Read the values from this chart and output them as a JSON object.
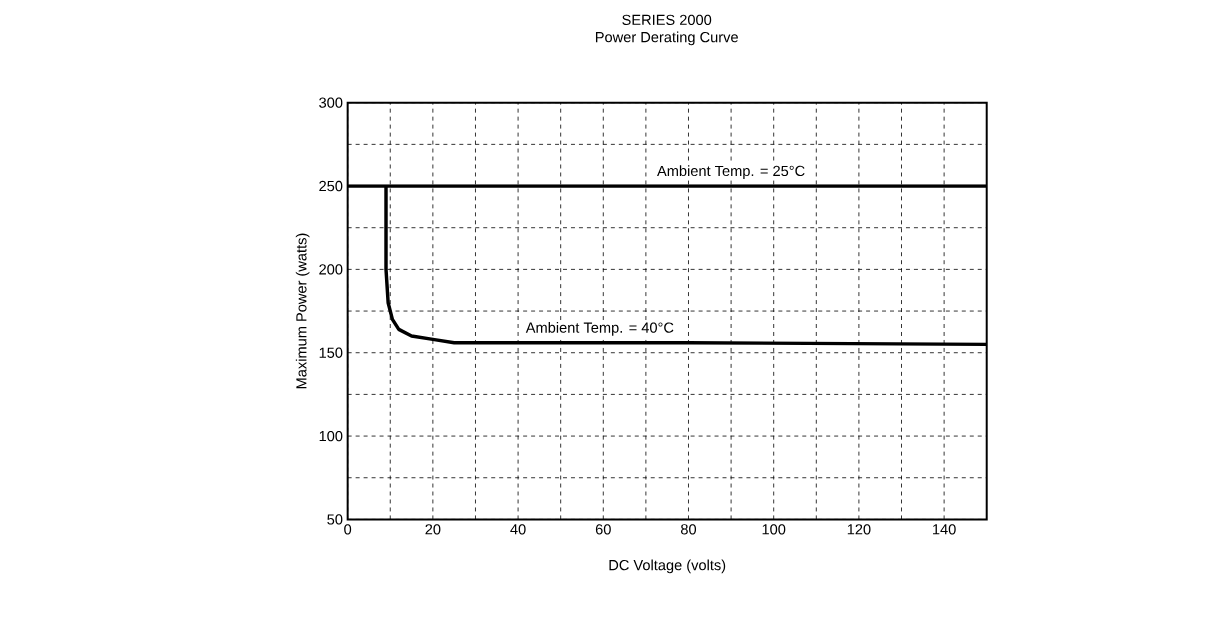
{
  "chart_data": {
    "type": "line",
    "title": "SERIES 2000",
    "subtitle": "Power Derating Curve",
    "xlabel": "DC Voltage (volts)",
    "ylabel": "Maximum Power (watts)",
    "xlim": [
      0,
      150
    ],
    "xticks": [
      0,
      20,
      40,
      60,
      80,
      100,
      120,
      140
    ],
    "ylim": [
      50,
      300
    ],
    "yticks": [
      50,
      100,
      150,
      200,
      250,
      300
    ],
    "grid": true,
    "line_style": "solid",
    "marker": "none",
    "series": [
      {
        "name": "Ambient Temp. = 25°C",
        "color": "#000000",
        "x": [
          0,
          150
        ],
        "values": [
          250,
          250
        ]
      },
      {
        "name": "Ambient Temp. = 40°C",
        "color": "#000000",
        "x": [
          9,
          9,
          9.5,
          10.5,
          12,
          15,
          20,
          25,
          80,
          150
        ],
        "values": [
          250,
          200,
          180,
          170,
          164,
          160,
          158,
          156,
          156,
          155
        ]
      }
    ]
  }
}
